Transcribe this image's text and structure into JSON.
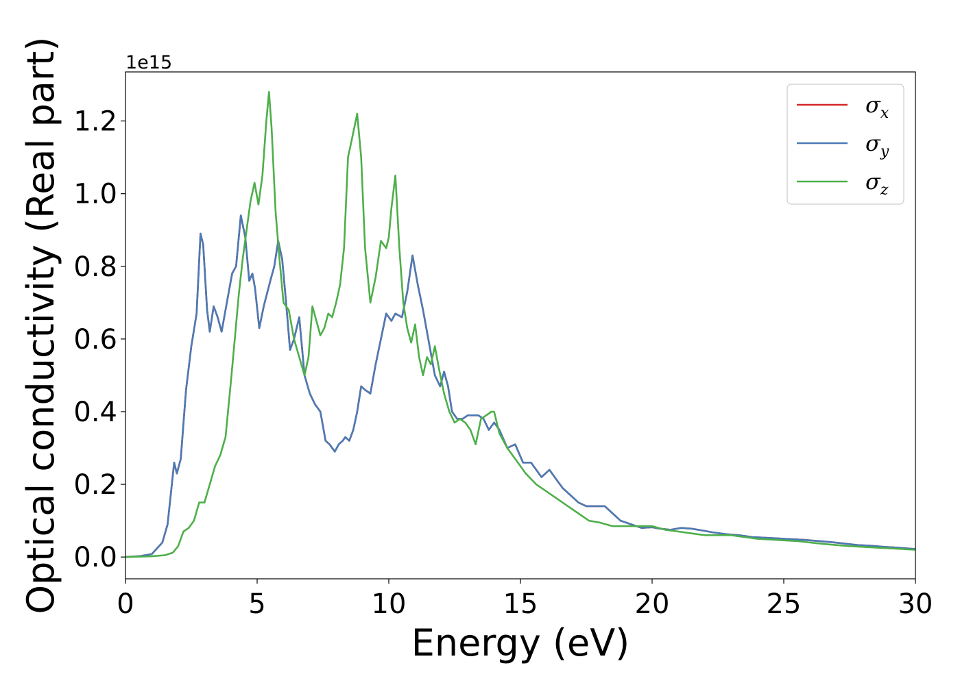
{
  "chart_data": {
    "type": "line",
    "title": "",
    "xlabel": "Energy (eV)",
    "ylabel": "Optical conductivity (Real part)",
    "y_offset_text": "1e15",
    "xlim": [
      0,
      30
    ],
    "ylim": [
      -0.06,
      1.335
    ],
    "x_ticks": [
      0,
      5,
      10,
      15,
      20,
      25,
      30
    ],
    "y_ticks": [
      0.0,
      0.2,
      0.4,
      0.6,
      0.8,
      1.0,
      1.2
    ],
    "grid": false,
    "legend_position": "top-right",
    "series": [
      {
        "name": "σx",
        "legend_symbol": "σ",
        "legend_sub": "x",
        "color": "#d62728",
        "x": [
          0,
          0.5,
          1,
          1.4,
          1.6,
          1.85,
          1.95,
          2.1,
          2.3,
          2.5,
          2.7,
          2.85,
          2.95,
          3.1,
          3.2,
          3.35,
          3.5,
          3.65,
          3.85,
          4.05,
          4.2,
          4.38,
          4.55,
          4.7,
          4.82,
          4.92,
          5.08,
          5.25,
          5.5,
          5.65,
          5.8,
          5.95,
          6.1,
          6.25,
          6.4,
          6.6,
          6.8,
          7.0,
          7.2,
          7.4,
          7.6,
          7.75,
          7.95,
          8.1,
          8.25,
          8.35,
          8.5,
          8.65,
          8.8,
          8.95,
          9.1,
          9.3,
          9.5,
          9.7,
          9.9,
          10.1,
          10.25,
          10.5,
          10.7,
          10.9,
          11.1,
          11.3,
          11.5,
          11.75,
          11.95,
          12.1,
          12.25,
          12.4,
          12.6,
          12.8,
          13.0,
          13.2,
          13.4,
          13.6,
          13.8,
          14.0,
          14.2,
          14.5,
          14.8,
          15.1,
          15.4,
          15.8,
          16.1,
          16.3,
          16.6,
          16.9,
          17.2,
          17.5,
          17.8,
          18.2,
          18.5,
          18.8,
          19.2,
          19.6,
          20.0,
          20.3,
          20.7,
          21.1,
          21.5,
          21.9,
          22.3,
          22.8,
          23.3,
          23.8,
          24.3,
          24.8,
          25.3,
          25.8,
          26.3,
          26.8,
          27.3,
          27.8,
          28.3,
          28.8,
          29.3,
          30.0
        ],
        "y": [
          0.0,
          0.002,
          0.008,
          0.04,
          0.09,
          0.26,
          0.23,
          0.27,
          0.46,
          0.58,
          0.67,
          0.89,
          0.86,
          0.68,
          0.62,
          0.69,
          0.66,
          0.62,
          0.7,
          0.78,
          0.8,
          0.94,
          0.88,
          0.76,
          0.78,
          0.74,
          0.63,
          0.69,
          0.76,
          0.8,
          0.87,
          0.82,
          0.7,
          0.57,
          0.6,
          0.66,
          0.5,
          0.45,
          0.42,
          0.4,
          0.32,
          0.31,
          0.29,
          0.31,
          0.32,
          0.33,
          0.32,
          0.35,
          0.4,
          0.47,
          0.46,
          0.45,
          0.53,
          0.6,
          0.67,
          0.65,
          0.67,
          0.66,
          0.73,
          0.83,
          0.75,
          0.68,
          0.6,
          0.5,
          0.47,
          0.51,
          0.47,
          0.4,
          0.38,
          0.38,
          0.39,
          0.39,
          0.39,
          0.38,
          0.35,
          0.37,
          0.35,
          0.3,
          0.31,
          0.26,
          0.26,
          0.22,
          0.24,
          0.22,
          0.19,
          0.17,
          0.15,
          0.14,
          0.14,
          0.14,
          0.12,
          0.1,
          0.09,
          0.08,
          0.082,
          0.078,
          0.075,
          0.08,
          0.078,
          0.073,
          0.068,
          0.063,
          0.06,
          0.055,
          0.053,
          0.051,
          0.049,
          0.047,
          0.044,
          0.041,
          0.037,
          0.033,
          0.031,
          0.028,
          0.026,
          0.022
        ]
      },
      {
        "name": "σy",
        "legend_symbol": "σ",
        "legend_sub": "y",
        "color": "#4a7bb5",
        "x": [
          0,
          0.5,
          1,
          1.4,
          1.6,
          1.85,
          1.95,
          2.1,
          2.3,
          2.5,
          2.7,
          2.85,
          2.95,
          3.1,
          3.2,
          3.35,
          3.5,
          3.65,
          3.85,
          4.05,
          4.2,
          4.38,
          4.55,
          4.7,
          4.82,
          4.92,
          5.08,
          5.25,
          5.5,
          5.65,
          5.8,
          5.95,
          6.1,
          6.25,
          6.4,
          6.6,
          6.8,
          7.0,
          7.2,
          7.4,
          7.6,
          7.75,
          7.95,
          8.1,
          8.25,
          8.35,
          8.5,
          8.65,
          8.8,
          8.95,
          9.1,
          9.3,
          9.5,
          9.7,
          9.9,
          10.1,
          10.25,
          10.5,
          10.7,
          10.9,
          11.1,
          11.3,
          11.5,
          11.75,
          11.95,
          12.1,
          12.25,
          12.4,
          12.6,
          12.8,
          13.0,
          13.2,
          13.4,
          13.6,
          13.8,
          14.0,
          14.2,
          14.5,
          14.8,
          15.1,
          15.4,
          15.8,
          16.1,
          16.3,
          16.6,
          16.9,
          17.2,
          17.5,
          17.8,
          18.2,
          18.5,
          18.8,
          19.2,
          19.6,
          20.0,
          20.3,
          20.7,
          21.1,
          21.5,
          21.9,
          22.3,
          22.8,
          23.3,
          23.8,
          24.3,
          24.8,
          25.3,
          25.8,
          26.3,
          26.8,
          27.3,
          27.8,
          28.3,
          28.8,
          29.3,
          30.0
        ],
        "y": [
          0.0,
          0.002,
          0.008,
          0.04,
          0.09,
          0.26,
          0.23,
          0.27,
          0.46,
          0.58,
          0.67,
          0.89,
          0.86,
          0.68,
          0.62,
          0.69,
          0.66,
          0.62,
          0.7,
          0.78,
          0.8,
          0.94,
          0.88,
          0.76,
          0.78,
          0.74,
          0.63,
          0.69,
          0.76,
          0.8,
          0.87,
          0.82,
          0.7,
          0.57,
          0.6,
          0.66,
          0.5,
          0.45,
          0.42,
          0.4,
          0.32,
          0.31,
          0.29,
          0.31,
          0.32,
          0.33,
          0.32,
          0.35,
          0.4,
          0.47,
          0.46,
          0.45,
          0.53,
          0.6,
          0.67,
          0.65,
          0.67,
          0.66,
          0.73,
          0.83,
          0.75,
          0.68,
          0.6,
          0.5,
          0.47,
          0.51,
          0.47,
          0.4,
          0.38,
          0.38,
          0.39,
          0.39,
          0.39,
          0.38,
          0.35,
          0.37,
          0.35,
          0.3,
          0.31,
          0.26,
          0.26,
          0.22,
          0.24,
          0.22,
          0.19,
          0.17,
          0.15,
          0.14,
          0.14,
          0.14,
          0.12,
          0.1,
          0.09,
          0.08,
          0.082,
          0.078,
          0.075,
          0.08,
          0.078,
          0.073,
          0.068,
          0.063,
          0.06,
          0.055,
          0.053,
          0.051,
          0.049,
          0.047,
          0.044,
          0.041,
          0.037,
          0.033,
          0.031,
          0.028,
          0.026,
          0.022
        ]
      },
      {
        "name": "σz",
        "legend_symbol": "σ",
        "legend_sub": "z",
        "color": "#4daf4a",
        "x": [
          0,
          1,
          1.5,
          1.8,
          2.0,
          2.2,
          2.4,
          2.6,
          2.8,
          3.0,
          3.2,
          3.4,
          3.6,
          3.8,
          4.0,
          4.15,
          4.3,
          4.45,
          4.6,
          4.75,
          4.9,
          5.05,
          5.2,
          5.35,
          5.45,
          5.55,
          5.7,
          5.85,
          6.0,
          6.2,
          6.4,
          6.6,
          6.8,
          6.95,
          7.1,
          7.25,
          7.4,
          7.55,
          7.7,
          7.85,
          8.0,
          8.15,
          8.3,
          8.45,
          8.6,
          8.8,
          8.95,
          9.1,
          9.3,
          9.5,
          9.7,
          9.9,
          10.0,
          10.1,
          10.25,
          10.4,
          10.55,
          10.7,
          10.85,
          11.0,
          11.15,
          11.3,
          11.45,
          11.6,
          11.75,
          11.9,
          12.1,
          12.3,
          12.5,
          12.7,
          12.9,
          13.1,
          13.3,
          13.5,
          13.7,
          13.9,
          14.0,
          14.2,
          14.5,
          14.8,
          15.2,
          15.6,
          16.0,
          16.4,
          16.8,
          17.2,
          17.6,
          18.0,
          18.5,
          19.0,
          19.5,
          20.0,
          20.5,
          21.0,
          21.5,
          22.0,
          22.5,
          23.0,
          23.5,
          24.0,
          24.5,
          25.0,
          25.5,
          26.0,
          26.5,
          27.0,
          27.5,
          28.0,
          28.5,
          29.0,
          29.5,
          30.0
        ],
        "y": [
          0.0,
          0.002,
          0.005,
          0.012,
          0.03,
          0.07,
          0.08,
          0.1,
          0.15,
          0.15,
          0.2,
          0.25,
          0.28,
          0.33,
          0.48,
          0.6,
          0.72,
          0.82,
          0.9,
          0.98,
          1.03,
          0.97,
          1.05,
          1.2,
          1.28,
          1.18,
          0.95,
          0.82,
          0.7,
          0.68,
          0.6,
          0.55,
          0.5,
          0.55,
          0.69,
          0.65,
          0.61,
          0.63,
          0.67,
          0.66,
          0.7,
          0.75,
          0.85,
          1.1,
          1.15,
          1.22,
          1.1,
          0.85,
          0.7,
          0.77,
          0.87,
          0.85,
          0.88,
          0.96,
          1.05,
          0.85,
          0.7,
          0.63,
          0.59,
          0.64,
          0.55,
          0.5,
          0.55,
          0.53,
          0.58,
          0.52,
          0.45,
          0.4,
          0.37,
          0.38,
          0.37,
          0.35,
          0.31,
          0.38,
          0.39,
          0.4,
          0.4,
          0.34,
          0.3,
          0.27,
          0.23,
          0.2,
          0.18,
          0.16,
          0.14,
          0.12,
          0.1,
          0.095,
          0.085,
          0.085,
          0.085,
          0.085,
          0.075,
          0.07,
          0.065,
          0.06,
          0.06,
          0.06,
          0.055,
          0.05,
          0.048,
          0.046,
          0.044,
          0.04,
          0.036,
          0.033,
          0.03,
          0.028,
          0.026,
          0.024,
          0.022,
          0.02
        ]
      }
    ]
  }
}
